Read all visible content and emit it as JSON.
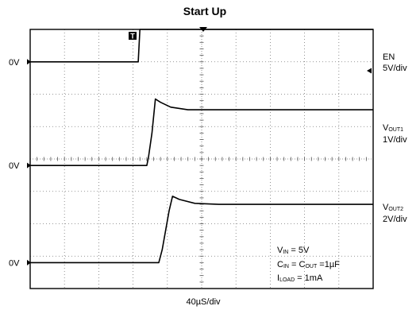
{
  "chart_data": {
    "type": "line",
    "title": "Start Up",
    "xlabel": "40µS/div",
    "divisions": {
      "x": 10,
      "y": 8
    },
    "series": [
      {
        "name": "EN",
        "scale": "5V/div",
        "zero_label": "0V",
        "zero_div": 1.0,
        "points": [
          [
            0,
            0
          ],
          [
            3.15,
            0
          ],
          [
            3.2,
            1.0
          ],
          [
            10,
            1.0
          ]
        ]
      },
      {
        "name": "VOUT1",
        "scale": "1V/div",
        "zero_label": "0V",
        "zero_div": 4.2,
        "points": [
          [
            0,
            0
          ],
          [
            3.4,
            0
          ],
          [
            3.45,
            0.25
          ],
          [
            3.55,
            1.0
          ],
          [
            3.65,
            2.05
          ],
          [
            3.8,
            1.95
          ],
          [
            4.1,
            1.8
          ],
          [
            4.6,
            1.72
          ],
          [
            10,
            1.72
          ]
        ]
      },
      {
        "name": "VOUT2",
        "scale": "2V/div",
        "zero_label": "0V",
        "zero_div": 7.2,
        "points": [
          [
            0,
            0
          ],
          [
            3.75,
            0
          ],
          [
            3.85,
            0.4
          ],
          [
            4.05,
            1.6
          ],
          [
            4.15,
            2.05
          ],
          [
            4.35,
            1.95
          ],
          [
            4.8,
            1.83
          ],
          [
            5.5,
            1.8
          ],
          [
            10,
            1.8
          ]
        ]
      }
    ],
    "labels": {
      "en": {
        "name": "EN",
        "scale": "5V/div"
      },
      "vout1": {
        "main": "V",
        "sub": "OUT1",
        "scale": "1V/div"
      },
      "vout2": {
        "main": "V",
        "sub": "OUT2",
        "scale": "2V/div"
      }
    },
    "conditions": {
      "vin": {
        "main": "V",
        "sub": "IN",
        "text": " = 5V"
      },
      "cap": {
        "main": "C",
        "sub": "IN",
        "mid": " = C",
        "sub2": "OUT",
        "text": " =1µF"
      },
      "iload": {
        "main": "I",
        "sub": "LOAD",
        "text": " = 1mA"
      }
    },
    "trigger_marker": "T"
  }
}
